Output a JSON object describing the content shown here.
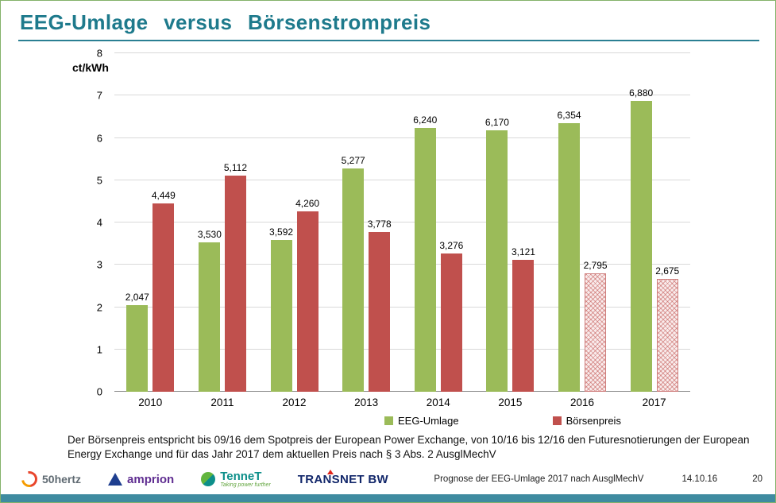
{
  "slide": {
    "title": "EEG-Umlage versus Börsenstrompreis"
  },
  "chart_data": {
    "type": "bar",
    "title": "EEG-Umlage versus Börsenstrompreis",
    "xlabel": "",
    "ylabel": "ct/kWh",
    "ylim": [
      0,
      8
    ],
    "yticks": [
      0,
      1,
      2,
      3,
      4,
      5,
      6,
      7,
      8
    ],
    "grid": true,
    "legend_position": "bottom",
    "categories": [
      "2010",
      "2011",
      "2012",
      "2013",
      "2014",
      "2015",
      "2016",
      "2017"
    ],
    "series": [
      {
        "name": "EEG-Umlage",
        "key": "eeg-umlage",
        "color": "#9BBB59",
        "values": [
          2.047,
          3.53,
          3.592,
          5.277,
          6.24,
          6.17,
          6.354,
          6.88
        ],
        "labels": [
          "2,047",
          "3,530",
          "3,592",
          "5,277",
          "6,240",
          "6,170",
          "6,354",
          "6,880"
        ]
      },
      {
        "name": "Börsenpreis",
        "key": "boersenpreis",
        "color": "#C0504D",
        "values": [
          4.449,
          5.112,
          4.26,
          3.778,
          3.276,
          3.121,
          2.795,
          2.675
        ],
        "labels": [
          "4,449",
          "5,112",
          "4,260",
          "3,778",
          "3,276",
          "3,121",
          "2,795",
          "2,675"
        ],
        "forecast_categories": [
          "2016",
          "2017"
        ]
      }
    ]
  },
  "footnote": "Der Börsenpreis entspricht bis 09/16 dem Spotpreis der European Power Exchange, von 10/16 bis 12/16 den Futuresnotierungen der European Energy Exchange und für das Jahr 2017 dem aktuellen Preis nach § 3 Abs. 2 AusglMechV",
  "footer": {
    "logos": [
      {
        "name": "50hertz",
        "text": "50hertz"
      },
      {
        "name": "amprion",
        "text": "amprion"
      },
      {
        "name": "tennet",
        "text": "TenneT",
        "tagline": "Taking power further"
      },
      {
        "name": "transnetbw",
        "text": "TRANSNET BW"
      }
    ],
    "caption": "Prognose der EEG-Umlage 2017 nach AusglMechV",
    "date": "14.10.16",
    "page": "20"
  },
  "colors": {
    "title_teal": "#1E7A8C",
    "eeg_green": "#9BBB59",
    "boersen_red": "#C0504D",
    "forecast_pink": "#F9ECEC",
    "gridline": "#D9D9D9",
    "bottom_bar_teal": "#3F8BA0"
  }
}
